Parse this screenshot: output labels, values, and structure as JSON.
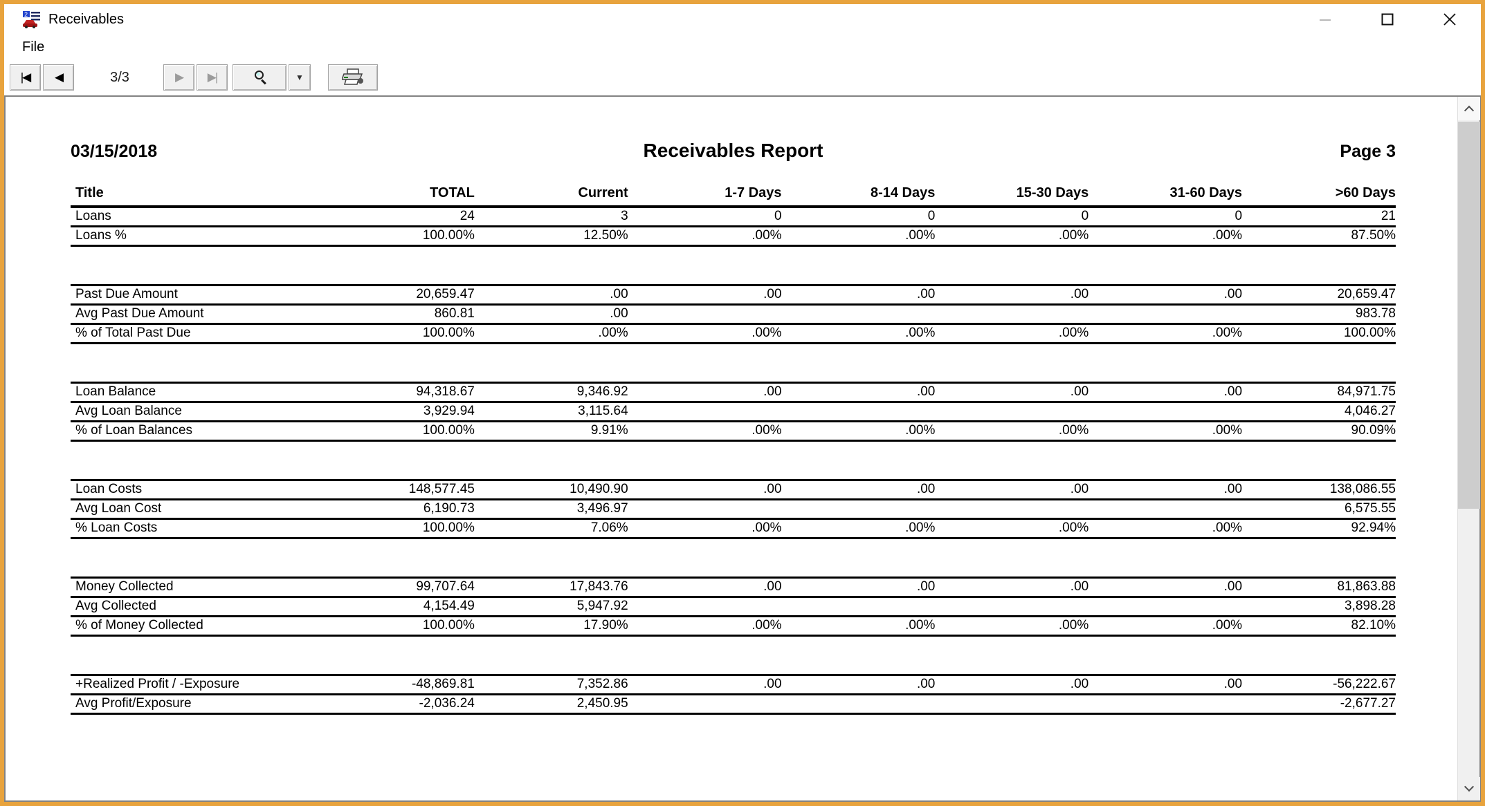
{
  "window": {
    "title": "Receivables",
    "controls": {
      "minimize": "minimize",
      "maximize": "maximize",
      "close": "close"
    }
  },
  "menu": {
    "file_label": "File"
  },
  "toolbar": {
    "first_page_glyph": "|◀",
    "prev_page_glyph": "◀",
    "page_indicator": "3/3",
    "next_page_glyph": "▶",
    "last_page_glyph": "▶|",
    "dropdown_glyph": "▼",
    "zoom_icon": "magnifier-icon",
    "print_icon": "printer-icon"
  },
  "report": {
    "date": "03/15/2018",
    "title": "Receivables Report",
    "page_label": "Page 3",
    "columns": [
      "Title",
      "TOTAL",
      "Current",
      "1-7 Days",
      "8-14 Days",
      "15-30 Days",
      "31-60 Days",
      ">60 Days"
    ],
    "groups": [
      {
        "rows": [
          {
            "label": "Loans",
            "values": [
              "24",
              "3",
              "0",
              "0",
              "0",
              "0",
              "21"
            ]
          },
          {
            "label": "Loans %",
            "values": [
              "100.00%",
              "12.50%",
              ".00%",
              ".00%",
              ".00%",
              ".00%",
              "87.50%"
            ]
          }
        ]
      },
      {
        "rows": [
          {
            "label": "Past Due Amount",
            "values": [
              "20,659.47",
              ".00",
              ".00",
              ".00",
              ".00",
              ".00",
              "20,659.47"
            ]
          },
          {
            "label": "Avg Past Due Amount",
            "values": [
              "860.81",
              ".00",
              "",
              "",
              "",
              "",
              "983.78"
            ]
          },
          {
            "label": "% of Total Past Due",
            "values": [
              "100.00%",
              ".00%",
              ".00%",
              ".00%",
              ".00%",
              ".00%",
              "100.00%"
            ]
          }
        ]
      },
      {
        "rows": [
          {
            "label": "Loan Balance",
            "values": [
              "94,318.67",
              "9,346.92",
              ".00",
              ".00",
              ".00",
              ".00",
              "84,971.75"
            ]
          },
          {
            "label": "Avg Loan Balance",
            "values": [
              "3,929.94",
              "3,115.64",
              "",
              "",
              "",
              "",
              "4,046.27"
            ]
          },
          {
            "label": "% of Loan Balances",
            "values": [
              "100.00%",
              "9.91%",
              ".00%",
              ".00%",
              ".00%",
              ".00%",
              "90.09%"
            ]
          }
        ]
      },
      {
        "rows": [
          {
            "label": "Loan Costs",
            "values": [
              "148,577.45",
              "10,490.90",
              ".00",
              ".00",
              ".00",
              ".00",
              "138,086.55"
            ]
          },
          {
            "label": "Avg Loan Cost",
            "values": [
              "6,190.73",
              "3,496.97",
              "",
              "",
              "",
              "",
              "6,575.55"
            ]
          },
          {
            "label": "% Loan Costs",
            "values": [
              "100.00%",
              "7.06%",
              ".00%",
              ".00%",
              ".00%",
              ".00%",
              "92.94%"
            ]
          }
        ]
      },
      {
        "rows": [
          {
            "label": "Money Collected",
            "values": [
              "99,707.64",
              "17,843.76",
              ".00",
              ".00",
              ".00",
              ".00",
              "81,863.88"
            ]
          },
          {
            "label": "Avg Collected",
            "values": [
              "4,154.49",
              "5,947.92",
              "",
              "",
              "",
              "",
              "3,898.28"
            ]
          },
          {
            "label": "% of Money Collected",
            "values": [
              "100.00%",
              "17.90%",
              ".00%",
              ".00%",
              ".00%",
              ".00%",
              "82.10%"
            ]
          }
        ]
      },
      {
        "rows": [
          {
            "label": "+Realized Profit / -Exposure",
            "values": [
              "-48,869.81",
              "7,352.86",
              ".00",
              ".00",
              ".00",
              ".00",
              "-56,222.67"
            ]
          },
          {
            "label": "Avg Profit/Exposure",
            "values": [
              "-2,036.24",
              "2,450.95",
              "",
              "",
              "",
              "",
              "-2,677.27"
            ]
          }
        ]
      }
    ]
  },
  "colors": {
    "window_border": "#E8A33D",
    "button_face": "#f0f0f0",
    "panel_border": "#828282",
    "scroll_thumb": "#cdcdcd",
    "text": "#000000"
  }
}
